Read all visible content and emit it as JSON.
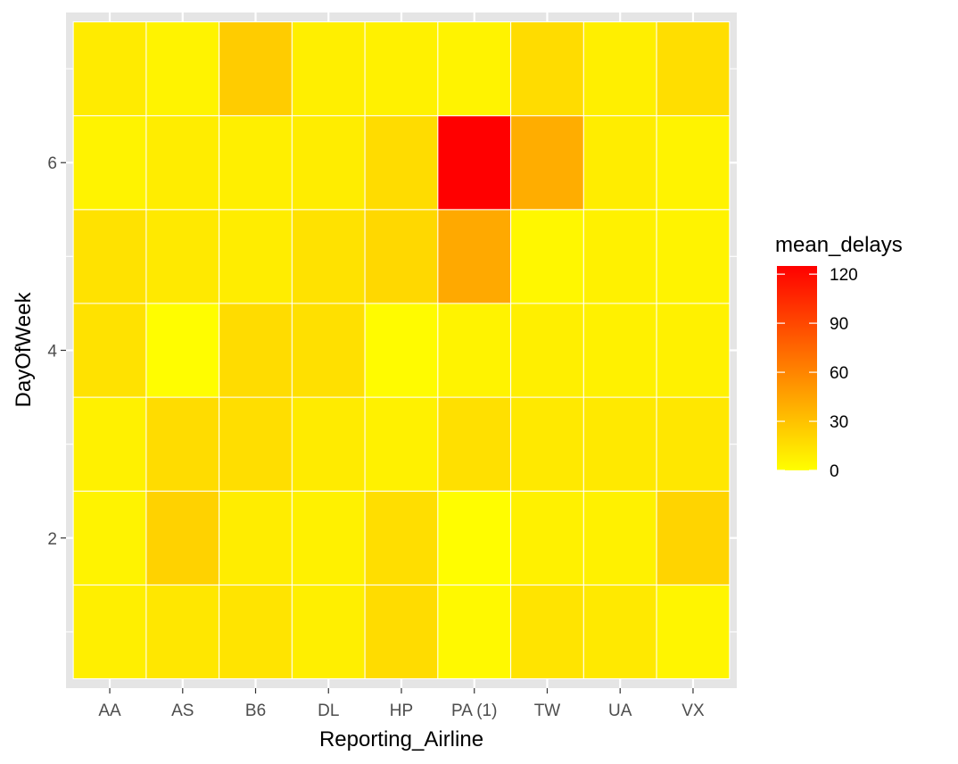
{
  "chart_data": {
    "type": "heatmap",
    "title": "",
    "xlabel": "Reporting_Airline",
    "ylabel": "DayOfWeek",
    "x_categories": [
      "AA",
      "AS",
      "B6",
      "DL",
      "HP",
      "PA (1)",
      "TW",
      "UA",
      "VX"
    ],
    "y_values": [
      1,
      2,
      3,
      4,
      5,
      6,
      7
    ],
    "y_ticks": [
      2,
      4,
      6
    ],
    "ylim": [
      0.4,
      7.6
    ],
    "value_name": "mean_delays",
    "z": [
      [
        8,
        12,
        13,
        8,
        17,
        3,
        13,
        11,
        5
      ],
      [
        6,
        22,
        9,
        7,
        16,
        1,
        7,
        7,
        21
      ],
      [
        7,
        17,
        16,
        10,
        7,
        15,
        11,
        11,
        12
      ],
      [
        14,
        1,
        17,
        15,
        2,
        6,
        8,
        7,
        7
      ],
      [
        14,
        11,
        9,
        14,
        19,
        42,
        4,
        7,
        6
      ],
      [
        6,
        9,
        8,
        9,
        17,
        125,
        40,
        9,
        6
      ],
      [
        10,
        6,
        25,
        8,
        7,
        6,
        17,
        8,
        16
      ]
    ],
    "color_scale": {
      "low": "#FFFF00",
      "high": "#FF0000",
      "limits": [
        0,
        125
      ]
    },
    "legend": {
      "title": "mean_delays",
      "breaks": [
        0,
        30,
        60,
        90,
        120
      ],
      "position": "right"
    },
    "grid": true,
    "panel_background": "#E5E5E5",
    "grid_color": "#FFFFFF",
    "tile_border": "#FFFFFF"
  }
}
